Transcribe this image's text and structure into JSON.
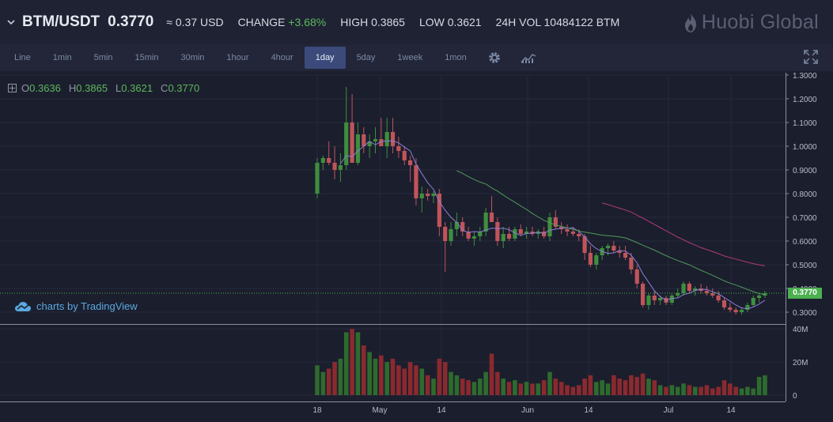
{
  "header": {
    "pair": "BTM/USDT",
    "last_price": "0.3770",
    "usd_price": "≈ 0.37 USD",
    "change_label": "CHANGE",
    "change_value": "+3.68%",
    "high_text": "HIGH 0.3865",
    "low_text": "LOW 0.3621",
    "vol_text": "24H VOL 10484122 BTM",
    "brand": "Huobi Global"
  },
  "toolbar": {
    "intervals": [
      "Line",
      "1min",
      "5min",
      "15min",
      "30min",
      "1hour",
      "4hour",
      "1day",
      "5day",
      "1week",
      "1mon"
    ],
    "active": "1day"
  },
  "ohlc": {
    "o_label": "O",
    "o": "0.3636",
    "h_label": "H",
    "h": "0.3865",
    "l_label": "L",
    "l": "0.3621",
    "c_label": "C",
    "c": "0.3770"
  },
  "branding": {
    "tradingview": "charts by TradingView"
  },
  "colors": {
    "up": "#3e8e3e",
    "down": "#c0545b",
    "ma_fast": "#8b7fd6",
    "ma_mid": "#4f9a5a",
    "ma_slow": "#b03a7a",
    "bg": "#1b1e2d"
  },
  "current_price_tag": "0.3770",
  "chart_data": {
    "type": "candlestick",
    "price_axis": {
      "ticks": [
        "1.3000",
        "1.2000",
        "1.1000",
        "1.0000",
        "0.9000",
        "0.8000",
        "0.7000",
        "0.6000",
        "0.5000",
        "0.4000",
        "0.3000"
      ],
      "range": [
        0.25,
        1.3
      ]
    },
    "volume_axis": {
      "ticks": [
        "40M",
        "20M",
        "0"
      ],
      "range": [
        0,
        42
      ]
    },
    "x_ticks": [
      "18",
      "May",
      "14",
      "Jun",
      "14",
      "Jul",
      "14"
    ],
    "candles": [
      [
        0.8,
        0.95,
        0.78,
        0.93,
        18
      ],
      [
        0.93,
        0.96,
        0.9,
        0.95,
        14
      ],
      [
        0.95,
        1.02,
        0.92,
        0.93,
        16
      ],
      [
        0.93,
        1.0,
        0.86,
        0.9,
        20
      ],
      [
        0.9,
        0.97,
        0.85,
        0.92,
        22
      ],
      [
        0.92,
        1.25,
        0.9,
        1.1,
        38
      ],
      [
        1.1,
        1.22,
        0.93,
        0.93,
        40
      ],
      [
        0.93,
        1.1,
        0.92,
        1.05,
        38
      ],
      [
        1.05,
        1.08,
        0.97,
        1.0,
        30
      ],
      [
        1.0,
        1.05,
        0.95,
        1.02,
        26
      ],
      [
        1.02,
        1.08,
        0.97,
        1.03,
        22
      ],
      [
        1.03,
        1.12,
        1.0,
        1.0,
        24
      ],
      [
        1.0,
        1.12,
        0.95,
        1.06,
        20
      ],
      [
        1.06,
        1.12,
        0.97,
        1.0,
        22
      ],
      [
        1.0,
        1.04,
        0.95,
        0.98,
        18
      ],
      [
        0.98,
        1.0,
        0.92,
        0.94,
        16
      ],
      [
        0.94,
        0.96,
        0.85,
        0.92,
        20
      ],
      [
        0.92,
        0.95,
        0.75,
        0.78,
        18
      ],
      [
        0.78,
        0.83,
        0.72,
        0.8,
        16
      ],
      [
        0.8,
        0.82,
        0.77,
        0.79,
        12
      ],
      [
        0.79,
        0.81,
        0.76,
        0.8,
        10
      ],
      [
        0.8,
        0.82,
        0.62,
        0.66,
        22
      ],
      [
        0.66,
        0.68,
        0.47,
        0.6,
        20
      ],
      [
        0.6,
        0.68,
        0.58,
        0.65,
        14
      ],
      [
        0.65,
        0.72,
        0.62,
        0.68,
        12
      ],
      [
        0.68,
        0.7,
        0.62,
        0.64,
        10
      ],
      [
        0.64,
        0.66,
        0.6,
        0.61,
        9
      ],
      [
        0.61,
        0.64,
        0.58,
        0.62,
        8
      ],
      [
        0.62,
        0.66,
        0.6,
        0.64,
        10
      ],
      [
        0.64,
        0.74,
        0.62,
        0.72,
        14
      ],
      [
        0.72,
        0.79,
        0.68,
        0.68,
        25
      ],
      [
        0.68,
        0.7,
        0.58,
        0.6,
        14
      ],
      [
        0.6,
        0.66,
        0.57,
        0.63,
        10
      ],
      [
        0.63,
        0.66,
        0.6,
        0.61,
        8
      ],
      [
        0.61,
        0.66,
        0.6,
        0.65,
        9
      ],
      [
        0.65,
        0.67,
        0.62,
        0.63,
        7
      ],
      [
        0.63,
        0.66,
        0.61,
        0.64,
        8
      ],
      [
        0.64,
        0.66,
        0.62,
        0.63,
        7
      ],
      [
        0.63,
        0.65,
        0.61,
        0.64,
        7
      ],
      [
        0.64,
        0.66,
        0.61,
        0.62,
        9
      ],
      [
        0.62,
        0.72,
        0.6,
        0.7,
        14
      ],
      [
        0.7,
        0.73,
        0.65,
        0.66,
        10
      ],
      [
        0.66,
        0.68,
        0.63,
        0.65,
        8
      ],
      [
        0.65,
        0.67,
        0.62,
        0.64,
        6
      ],
      [
        0.64,
        0.66,
        0.62,
        0.63,
        5
      ],
      [
        0.63,
        0.65,
        0.6,
        0.62,
        6
      ],
      [
        0.62,
        0.63,
        0.52,
        0.55,
        10
      ],
      [
        0.55,
        0.58,
        0.49,
        0.5,
        12
      ],
      [
        0.5,
        0.55,
        0.48,
        0.54,
        8
      ],
      [
        0.54,
        0.58,
        0.52,
        0.57,
        9
      ],
      [
        0.57,
        0.59,
        0.54,
        0.58,
        7
      ],
      [
        0.58,
        0.6,
        0.55,
        0.56,
        12
      ],
      [
        0.56,
        0.58,
        0.53,
        0.55,
        10
      ],
      [
        0.55,
        0.58,
        0.52,
        0.53,
        9
      ],
      [
        0.53,
        0.55,
        0.46,
        0.48,
        12
      ],
      [
        0.48,
        0.5,
        0.4,
        0.42,
        11
      ],
      [
        0.42,
        0.43,
        0.32,
        0.33,
        13
      ],
      [
        0.33,
        0.38,
        0.31,
        0.37,
        10
      ],
      [
        0.37,
        0.39,
        0.33,
        0.35,
        9
      ],
      [
        0.35,
        0.37,
        0.33,
        0.36,
        6
      ],
      [
        0.36,
        0.37,
        0.33,
        0.34,
        5
      ],
      [
        0.34,
        0.38,
        0.33,
        0.37,
        6
      ],
      [
        0.37,
        0.4,
        0.36,
        0.38,
        5
      ],
      [
        0.38,
        0.43,
        0.37,
        0.42,
        7
      ],
      [
        0.42,
        0.43,
        0.38,
        0.39,
        6
      ],
      [
        0.39,
        0.41,
        0.37,
        0.4,
        5
      ],
      [
        0.4,
        0.42,
        0.38,
        0.39,
        5
      ],
      [
        0.39,
        0.41,
        0.37,
        0.38,
        6
      ],
      [
        0.38,
        0.4,
        0.36,
        0.37,
        4
      ],
      [
        0.37,
        0.39,
        0.34,
        0.35,
        5
      ],
      [
        0.35,
        0.36,
        0.31,
        0.32,
        9
      ],
      [
        0.32,
        0.34,
        0.3,
        0.31,
        7
      ],
      [
        0.31,
        0.32,
        0.29,
        0.3,
        5
      ],
      [
        0.3,
        0.32,
        0.29,
        0.31,
        4
      ],
      [
        0.31,
        0.34,
        0.3,
        0.33,
        5
      ],
      [
        0.33,
        0.37,
        0.32,
        0.36,
        4
      ],
      [
        0.36,
        0.38,
        0.34,
        0.37,
        11
      ],
      [
        0.37,
        0.39,
        0.36,
        0.38,
        12
      ]
    ]
  }
}
